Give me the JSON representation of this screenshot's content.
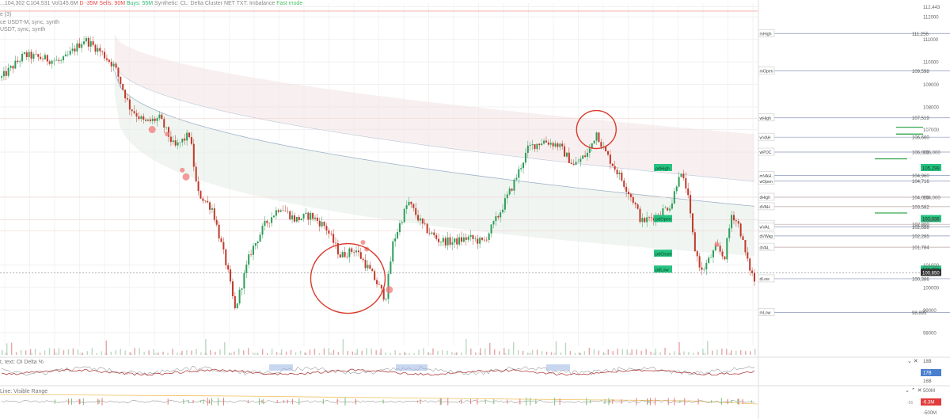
{
  "header": {
    "ohlc_text": "...104,302 C104,531",
    "vol_text": "Vol145.6M",
    "delta_text": "D -35M",
    "sells_text": "Sells: 90M",
    "buys_text": "Buys: 55M",
    "flags_text": "Synthetic: CL: Delta Cluster NET TXT: Imbalance",
    "live_text": "Fast mode",
    "line2": "e (3)",
    "line3": "ce USDT-M, sync, synth",
    "line4": "USDT, sync, synth"
  },
  "colors": {
    "up": "#2e9e5a",
    "down": "#c0392b",
    "accent_green": "#26c281",
    "highlight_red": "#d93a2b",
    "price_tag": "#333333"
  },
  "chart_data": {
    "type": "candlestick",
    "ylim": [
      97400,
      112600
    ],
    "y_ticks": [
      {
        "value": 112443,
        "label": "112,443"
      },
      {
        "value": 112000,
        "label": "112000"
      },
      {
        "value": 111000,
        "label": "111000"
      },
      {
        "value": 110000,
        "label": "110000"
      },
      {
        "value": 109000,
        "label": "109000"
      },
      {
        "value": 108000,
        "label": "108000"
      },
      {
        "value": 107000,
        "label": "107000"
      },
      {
        "value": 106000,
        "label": "106,000"
      },
      {
        "value": 104000,
        "label": "104,000"
      },
      {
        "value": 103000,
        "label": "103000"
      },
      {
        "value": 101000,
        "label": "101000"
      },
      {
        "value": 100000,
        "label": "100000"
      },
      {
        "value": 99000,
        "label": "99000"
      },
      {
        "value": 98000,
        "label": "98000"
      }
    ],
    "price_anchors": [
      {
        "t": 0,
        "p": 109300
      },
      {
        "t": 3,
        "p": 110300
      },
      {
        "t": 8,
        "p": 110000
      },
      {
        "t": 11,
        "p": 111000
      },
      {
        "t": 13,
        "p": 110500
      },
      {
        "t": 15,
        "p": 109800
      },
      {
        "t": 17,
        "p": 108000
      },
      {
        "t": 19,
        "p": 107300
      },
      {
        "t": 21,
        "p": 107500
      },
      {
        "t": 23,
        "p": 106200
      },
      {
        "t": 25,
        "p": 106800
      },
      {
        "t": 26,
        "p": 104200
      },
      {
        "t": 28,
        "p": 103500
      },
      {
        "t": 30,
        "p": 100800
      },
      {
        "t": 31,
        "p": 99000
      },
      {
        "t": 33,
        "p": 101500
      },
      {
        "t": 35,
        "p": 102800
      },
      {
        "t": 37,
        "p": 103600
      },
      {
        "t": 39,
        "p": 103000
      },
      {
        "t": 41,
        "p": 103200
      },
      {
        "t": 43,
        "p": 102700
      },
      {
        "t": 45,
        "p": 101400
      },
      {
        "t": 47,
        "p": 101700
      },
      {
        "t": 49,
        "p": 100700
      },
      {
        "t": 51,
        "p": 99500
      },
      {
        "t": 52,
        "p": 102000
      },
      {
        "t": 54,
        "p": 103800
      },
      {
        "t": 56,
        "p": 102700
      },
      {
        "t": 58,
        "p": 102100
      },
      {
        "t": 60,
        "p": 102000
      },
      {
        "t": 62,
        "p": 102200
      },
      {
        "t": 64,
        "p": 102000
      },
      {
        "t": 66,
        "p": 103200
      },
      {
        "t": 68,
        "p": 104600
      },
      {
        "t": 70,
        "p": 106200
      },
      {
        "t": 72,
        "p": 106500
      },
      {
        "t": 74,
        "p": 106300
      },
      {
        "t": 76,
        "p": 105400
      },
      {
        "t": 78,
        "p": 106000
      },
      {
        "t": 79,
        "p": 106900
      },
      {
        "t": 80,
        "p": 106100
      },
      {
        "t": 82,
        "p": 105000
      },
      {
        "t": 84,
        "p": 103800
      },
      {
        "t": 85,
        "p": 102900
      },
      {
        "t": 87,
        "p": 103200
      },
      {
        "t": 89,
        "p": 103700
      },
      {
        "t": 90,
        "p": 105100
      },
      {
        "t": 91,
        "p": 104400
      },
      {
        "t": 92,
        "p": 101800
      },
      {
        "t": 93,
        "p": 100700
      },
      {
        "t": 95,
        "p": 101800
      },
      {
        "t": 96,
        "p": 101300
      },
      {
        "t": 97,
        "p": 103300
      },
      {
        "t": 98,
        "p": 102700
      },
      {
        "t": 99,
        "p": 101200
      },
      {
        "t": 100,
        "p": 100300
      }
    ],
    "levels": [
      {
        "name": "mHigh",
        "value": 111256,
        "label": "111,256",
        "color": "#8a97b8"
      },
      {
        "name": "mOpen",
        "value": 109598,
        "label": "109,598",
        "color": "#8a97b8"
      },
      {
        "name": "wHigh",
        "value": 107519,
        "label": "107,519",
        "color": "#8a97b8"
      },
      {
        "name": "wVAH",
        "value": 106660,
        "label": "106,660",
        "color": "#8a97b8"
      },
      {
        "name": "wPOC",
        "value": 106000,
        "label": "106,000",
        "color": "#8a97b8"
      },
      {
        "name": "mVAH",
        "value": 104960,
        "label": "104,960",
        "color": "#8a97b8"
      },
      {
        "name": "wOpen",
        "value": 104716,
        "label": "104,716",
        "color": "#8a97b8"
      },
      {
        "name": "dHigh",
        "value": 104000,
        "label": "104,000",
        "color": "#b8a0a0"
      },
      {
        "name": "dVAH",
        "value": 103582,
        "label": "103,582",
        "color": "#b8a0a0"
      },
      {
        "name": "dPOC",
        "value": 102800,
        "label": "102,800",
        "color": "#b8a0a0"
      },
      {
        "name": "wVAL",
        "value": 102688,
        "label": "102,688",
        "color": "#8a97b8"
      },
      {
        "name": "dVWap",
        "value": 102285,
        "label": "102,285",
        "color": "#8a97b8"
      },
      {
        "name": "dVAL",
        "value": 101784,
        "label": "101,784",
        "color": "#b8a0a0"
      },
      {
        "name": "dLow",
        "value": 100386,
        "label": "100,386",
        "color": "#8a97b8"
      },
      {
        "name": "mLow",
        "value": 98895,
        "label": "98,895",
        "color": "#8a97b8"
      }
    ],
    "green_tags": [
      {
        "value": 105299,
        "label": "105,299"
      },
      {
        "value": 103036,
        "label": "103,036"
      },
      {
        "value": 100796,
        "label": "100,796"
      }
    ],
    "current_price": {
      "value": 100650,
      "label": "100,650"
    },
    "pd_labels": [
      {
        "name": "pdHigh",
        "value": 105299
      },
      {
        "name": "pdOpen",
        "value": 103036
      },
      {
        "name": "pdClose",
        "value": 101500
      },
      {
        "name": "pdLow",
        "value": 100796
      }
    ],
    "circles": [
      {
        "t": 46,
        "p": 100400
      },
      {
        "t": 79,
        "p": 107000
      }
    ]
  },
  "pane1": {
    "title": "t, text: OI Delta %",
    "scale_top": "18B",
    "scale_mid": "17B",
    "scale_bot": "16B"
  },
  "pane2": {
    "title": "Line: Visible Range",
    "scale_top": "500M",
    "value_tag": "-6.3M",
    "side_label": "-56",
    "scale_bot": "-500M"
  }
}
